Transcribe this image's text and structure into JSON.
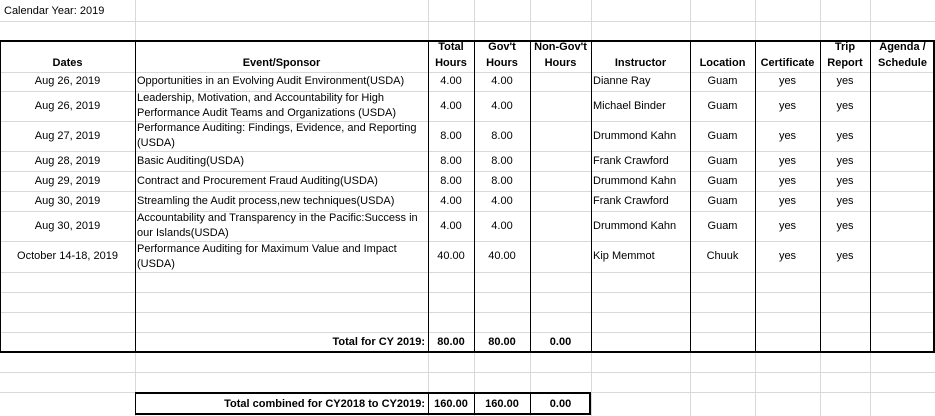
{
  "calendar_year_label": "Calendar Year: 2019",
  "headers": {
    "dates": "Dates",
    "event": "Event/Sponsor",
    "total_hours": [
      "Total",
      "Hours"
    ],
    "gov_hours": [
      "Gov't",
      "Hours"
    ],
    "non_gov_hours": [
      "Non-Gov't",
      "Hours"
    ],
    "instructor": "Instructor",
    "location": "Location",
    "certificate": "Certificate",
    "trip_report": [
      "Trip",
      "Report"
    ],
    "agenda": [
      "Agenda /",
      "Schedule"
    ]
  },
  "rows": [
    {
      "date": "Aug 26, 2019",
      "event": "Opportunities in an Evolving Audit Environment(USDA)",
      "total": "4.00",
      "gov": "4.00",
      "nongov": "",
      "instructor": "Dianne Ray",
      "location": "Guam",
      "certificate": "yes",
      "trip_report": "yes",
      "agenda": ""
    },
    {
      "date": "Aug 26, 2019",
      "event": "Leadership, Motivation, and Accountability for High Performance Audit Teams and Organizations (USDA)",
      "total": "4.00",
      "gov": "4.00",
      "nongov": "",
      "instructor": "Michael Binder",
      "location": "Guam",
      "certificate": "yes",
      "trip_report": "yes",
      "agenda": ""
    },
    {
      "date": "Aug 27, 2019",
      "event": "Performance Auditing: Findings, Evidence, and Reporting (USDA)",
      "total": "8.00",
      "gov": "8.00",
      "nongov": "",
      "instructor": "Drummond Kahn",
      "location": "Guam",
      "certificate": "yes",
      "trip_report": "yes",
      "agenda": ""
    },
    {
      "date": "Aug 28, 2019",
      "event": "Basic Auditing(USDA)",
      "total": "8.00",
      "gov": "8.00",
      "nongov": "",
      "instructor": "Frank Crawford",
      "location": "Guam",
      "certificate": "yes",
      "trip_report": "yes",
      "agenda": ""
    },
    {
      "date": "Aug 29, 2019",
      "event": "Contract and Procurement Fraud Auditing(USDA)",
      "total": "8.00",
      "gov": "8.00",
      "nongov": "",
      "instructor": "Drummond Kahn",
      "location": "Guam",
      "certificate": "yes",
      "trip_report": "yes",
      "agenda": ""
    },
    {
      "date": "Aug 30, 2019",
      "event": "Streamling the Audit process,new techniques(USDA)",
      "total": "4.00",
      "gov": "4.00",
      "nongov": "",
      "instructor": "Frank Crawford",
      "location": "Guam",
      "certificate": "yes",
      "trip_report": "yes",
      "agenda": ""
    },
    {
      "date": "Aug 30, 2019",
      "event": "Accountability and Transparency in the Pacific:Success in our Islands(USDA)",
      "total": "4.00",
      "gov": "4.00",
      "nongov": "",
      "instructor": "Drummond Kahn",
      "location": "Guam",
      "certificate": "yes",
      "trip_report": "yes",
      "agenda": ""
    },
    {
      "date": "October 14-18, 2019",
      "event": "Performance Auditing for Maximum Value and Impact (USDA)",
      "total": "40.00",
      "gov": "40.00",
      "nongov": "",
      "instructor": "Kip Memmot",
      "location": "Chuuk",
      "certificate": "yes",
      "trip_report": "yes",
      "agenda": ""
    }
  ],
  "total_cy": {
    "label": "Total for CY 2019:",
    "total": "80.00",
    "gov": "80.00",
    "nongov": "0.00"
  },
  "total_combined": {
    "label": "Total combined for CY2018 to CY2019:",
    "total": "160.00",
    "gov": "160.00",
    "nongov": "0.00"
  }
}
